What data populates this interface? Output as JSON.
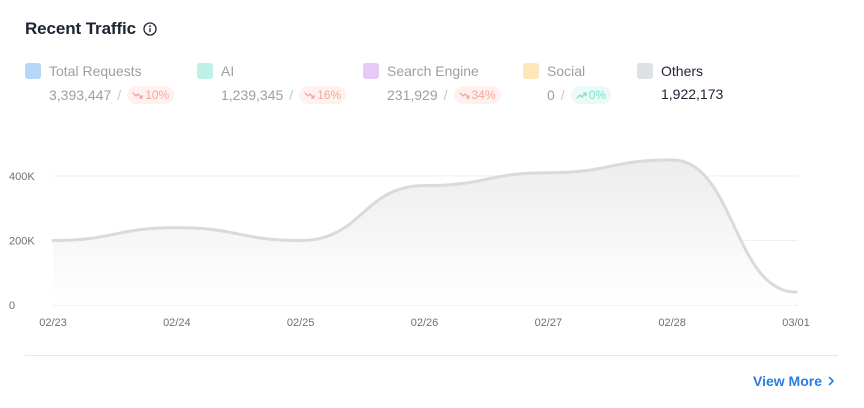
{
  "header": {
    "title": "Recent Traffic",
    "info_icon": "info-circle-icon"
  },
  "legend": [
    {
      "label": "Total Requests",
      "value": "3,393,447",
      "change": "10%",
      "direction": "down",
      "color": "#b8d6f8",
      "active": false
    },
    {
      "label": "AI",
      "value": "1,239,345",
      "change": "16%",
      "direction": "down",
      "color": "#bff0e6",
      "active": false
    },
    {
      "label": "Search Engine",
      "value": "231,929",
      "change": "34%",
      "direction": "down",
      "color": "#e6c9f6",
      "active": false
    },
    {
      "label": "Social",
      "value": "0",
      "change": "0%",
      "direction": "up",
      "color": "#fde6b8",
      "active": false
    },
    {
      "label": "Others",
      "value": "1,922,173",
      "change": null,
      "direction": null,
      "color": "#dde0e4",
      "active": true
    }
  ],
  "footer": {
    "view_more_label": "View More",
    "chevron_icon": "chevron-right-icon"
  },
  "chart_data": {
    "type": "area",
    "series": [
      {
        "name": "Others",
        "x": [
          "02/23",
          "02/24",
          "02/25",
          "02/26",
          "02/27",
          "02/28",
          "03/01"
        ],
        "y": [
          200000,
          240000,
          200000,
          370000,
          410000,
          450000,
          40000
        ]
      }
    ],
    "ylim": [
      0,
      600000
    ],
    "yticks": [
      0,
      200000,
      400000
    ],
    "ytick_labels": [
      "0",
      "200K",
      "400K"
    ],
    "xtick_labels": [
      "02/23",
      "02/24",
      "02/25",
      "02/26",
      "02/27",
      "02/28",
      "03/01"
    ],
    "grid": true,
    "colors": {
      "line": "#d9dadd",
      "grid": "#eeeff1",
      "axis": "#e4e5e8",
      "tick_text": "#6b7078"
    }
  }
}
